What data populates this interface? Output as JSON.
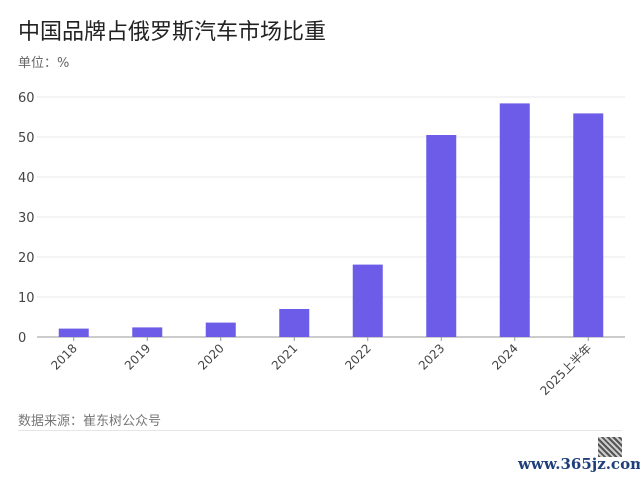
{
  "title": "中国品牌占俄罗斯汽车市场比重",
  "unit": "单位：%",
  "source": "数据来源：崔东树公众号",
  "watermark": "www.365jz.com",
  "chart_data": {
    "type": "bar",
    "title": "中国品牌占俄罗斯汽车市场比重",
    "xlabel": "",
    "ylabel": "单位：%",
    "categories": [
      "2018",
      "2019",
      "2020",
      "2021",
      "2022",
      "2023",
      "2024",
      "2025上半年"
    ],
    "values": [
      2.1,
      2.4,
      3.6,
      7.0,
      18.1,
      50.5,
      58.4,
      55.9
    ],
    "ylim": [
      0,
      60
    ],
    "yticks": [
      0,
      10,
      20,
      30,
      40,
      50,
      60
    ],
    "grid": true,
    "bar_color": "#6c5ce7"
  }
}
